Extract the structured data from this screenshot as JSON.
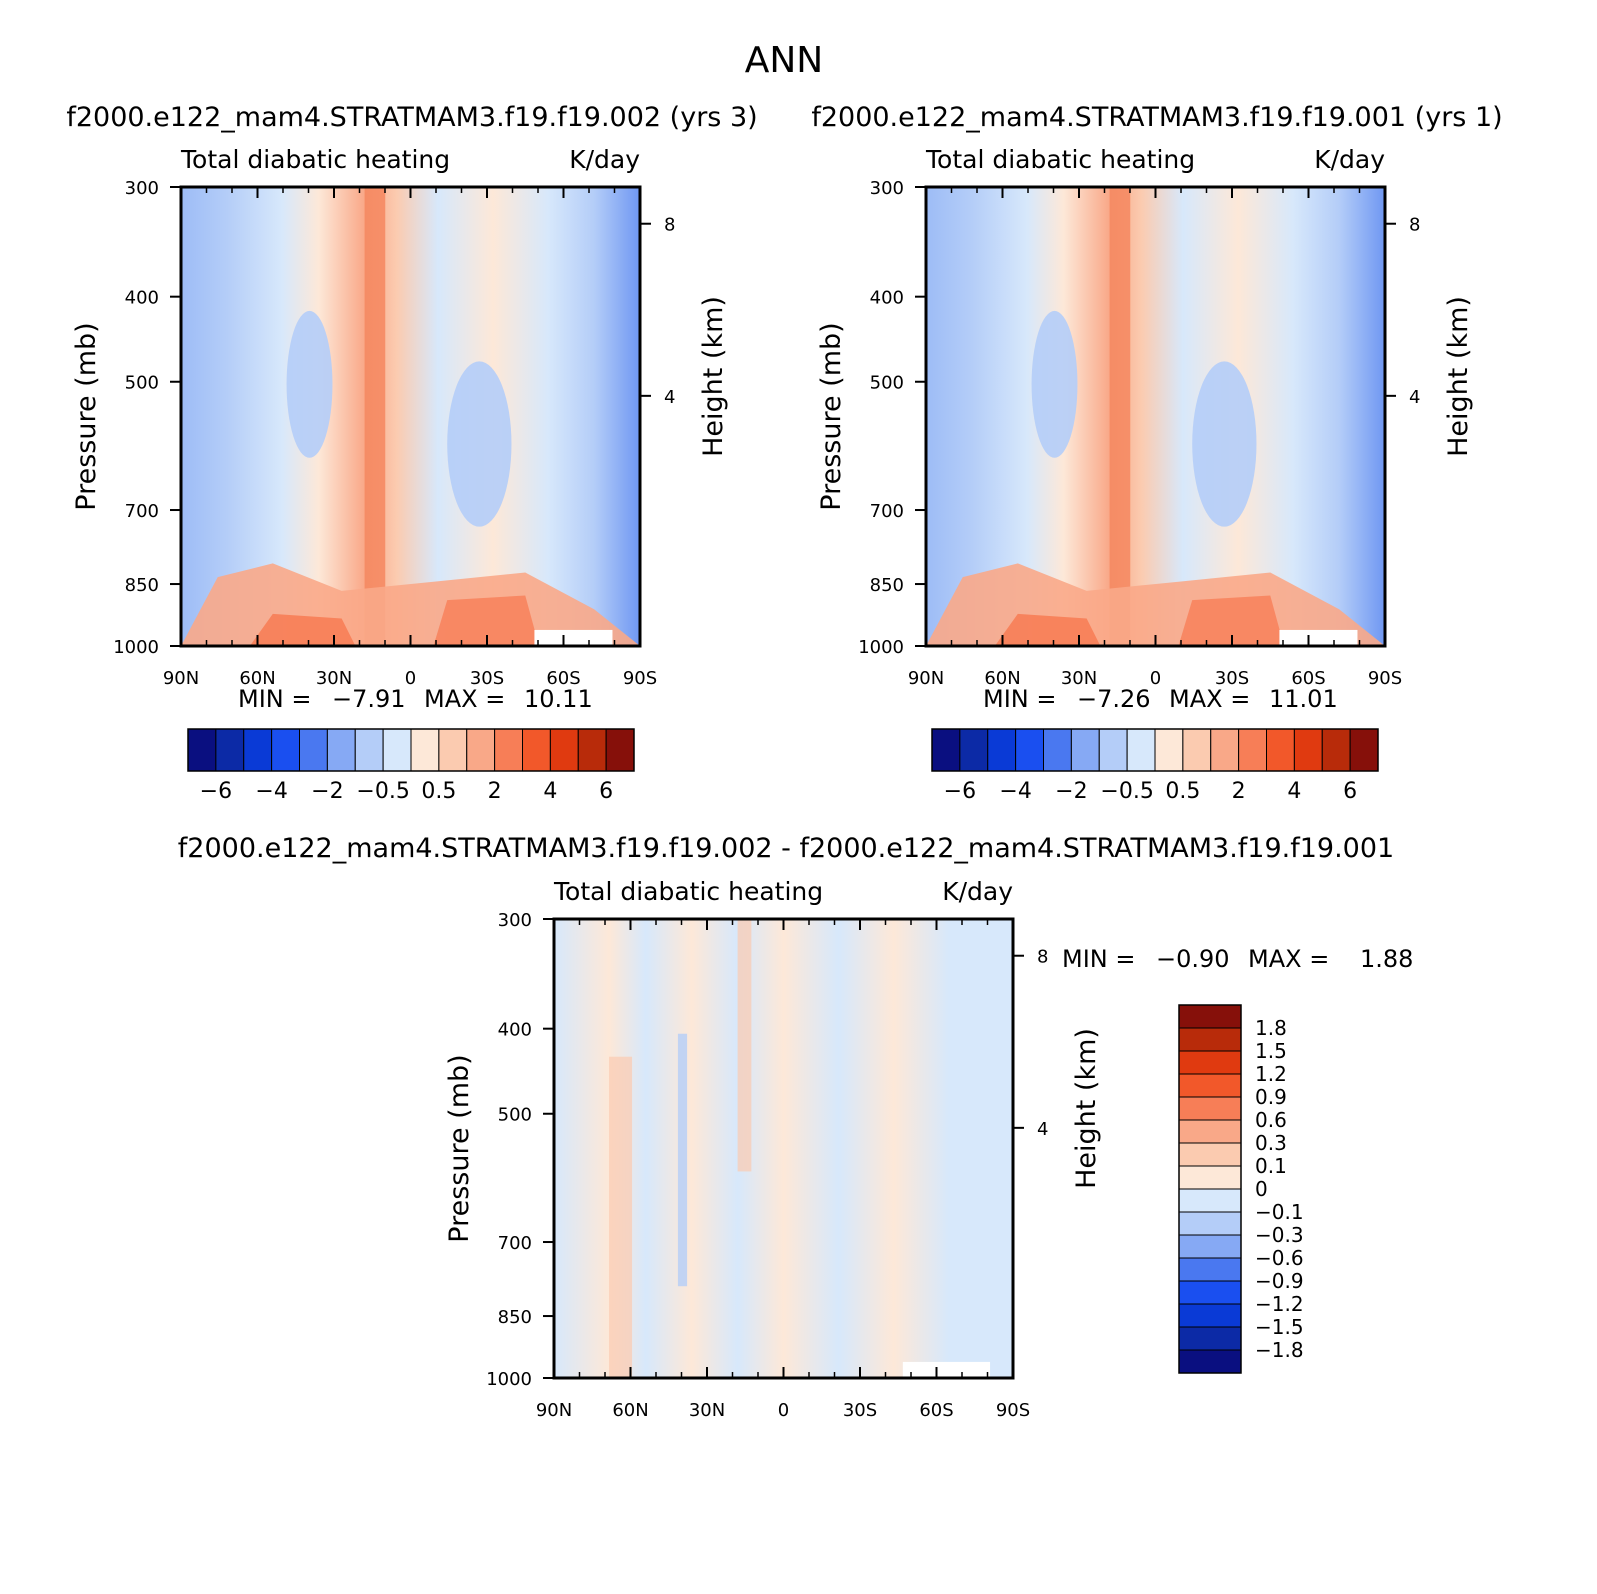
{
  "page_title": "ANN",
  "panels": [
    {
      "header": "f2000.e122_mam4.STRATMAM3.f19.f19.002 (yrs 3)",
      "chart_data": {
        "type": "heatmap",
        "title": "Total diabatic heating",
        "units": "K/day",
        "xlabel": "",
        "ylabel": "Pressure (mb)",
        "y2label": "Height (km)",
        "x_ticks": [
          "90N",
          "60N",
          "30N",
          "0",
          "30S",
          "60S",
          "90S"
        ],
        "y_ticks": [
          "300",
          "400",
          "500",
          "700",
          "850",
          "1000"
        ],
        "y_scale": "log",
        "y2_ticks": [
          "8",
          "4"
        ],
        "min": -7.91,
        "max": 10.11,
        "stats_text": {
          "min_label": "MIN =",
          "min_value": "-7.91",
          "max_label": "MAX =",
          "max_value": "10.11"
        },
        "colorbar": {
          "orientation": "horizontal",
          "colors": [
            "#0a0f80",
            "#0c2aa6",
            "#0a3ad6",
            "#1a4ff0",
            "#4a78f0",
            "#86a9f4",
            "#b4cdf8",
            "#d7e8fb",
            "#fde8d8",
            "#fbcbb0",
            "#f9a888",
            "#f77e57",
            "#f2582a",
            "#e03a10",
            "#b82b0a",
            "#86100a"
          ],
          "labels": [
            "-6",
            "-4",
            "-2",
            "-0.5",
            "0.5",
            "2",
            "4",
            "6"
          ]
        }
      }
    },
    {
      "header": "f2000.e122_mam4.STRATMAM3.f19.f19.001 (yrs 1)",
      "chart_data": {
        "type": "heatmap",
        "title": "Total diabatic heating",
        "units": "K/day",
        "xlabel": "",
        "ylabel": "Pressure (mb)",
        "y2label": "Height (km)",
        "x_ticks": [
          "90N",
          "60N",
          "30N",
          "0",
          "30S",
          "60S",
          "90S"
        ],
        "y_ticks": [
          "300",
          "400",
          "500",
          "700",
          "850",
          "1000"
        ],
        "y_scale": "log",
        "y2_ticks": [
          "8",
          "4"
        ],
        "min": -7.26,
        "max": 11.01,
        "stats_text": {
          "min_label": "MIN =",
          "min_value": "-7.26",
          "max_label": "MAX =",
          "max_value": "11.01"
        },
        "colorbar": {
          "orientation": "horizontal",
          "colors": [
            "#0a0f80",
            "#0c2aa6",
            "#0a3ad6",
            "#1a4ff0",
            "#4a78f0",
            "#86a9f4",
            "#b4cdf8",
            "#d7e8fb",
            "#fde8d8",
            "#fbcbb0",
            "#f9a888",
            "#f77e57",
            "#f2582a",
            "#e03a10",
            "#b82b0a",
            "#86100a"
          ],
          "labels": [
            "-6",
            "-4",
            "-2",
            "-0.5",
            "0.5",
            "2",
            "4",
            "6"
          ]
        }
      }
    },
    {
      "header": "f2000.e122_mam4.STRATMAM3.f19.f19.002 - f2000.e122_mam4.STRATMAM3.f19.f19.001",
      "chart_data": {
        "type": "heatmap",
        "title": "Total diabatic heating",
        "units": "K/day",
        "xlabel": "",
        "ylabel": "Pressure (mb)",
        "y2label": "Height (km)",
        "x_ticks": [
          "90N",
          "60N",
          "30N",
          "0",
          "30S",
          "60S",
          "90S"
        ],
        "y_ticks": [
          "300",
          "400",
          "500",
          "700",
          "850",
          "1000"
        ],
        "y_scale": "log",
        "y2_ticks": [
          "8",
          "4"
        ],
        "min": -0.9,
        "max": 1.88,
        "stats_text": {
          "min_label": "MIN =",
          "min_value": "-0.90",
          "max_label": "MAX =",
          "max_value": "1.88"
        },
        "colorbar": {
          "orientation": "vertical",
          "colors": [
            "#86100a",
            "#b82b0a",
            "#e03a10",
            "#f2582a",
            "#f77e57",
            "#f9a888",
            "#fbcbb0",
            "#fde8d8",
            "#d7e8fb",
            "#b4cdf8",
            "#86a9f4",
            "#4a78f0",
            "#1a4ff0",
            "#0a3ad6",
            "#0c2aa6",
            "#0a0f80"
          ],
          "labels": [
            "1.8",
            "1.5",
            "1.2",
            "0.9",
            "0.6",
            "0.3",
            "0.1",
            "0",
            "-0.1",
            "-0.3",
            "-0.6",
            "-0.9",
            "-1.2",
            "-1.5",
            "-1.8"
          ]
        }
      }
    }
  ]
}
